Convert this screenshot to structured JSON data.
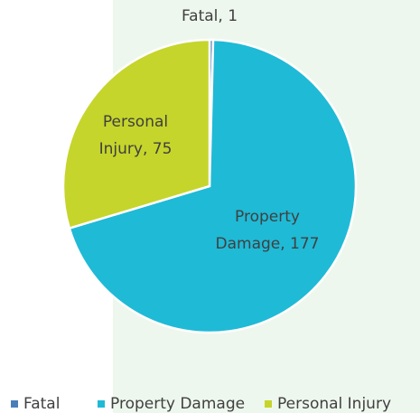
{
  "chart_data": {
    "type": "pie",
    "categories": [
      "Fatal",
      "Property Damage",
      "Personal Injury"
    ],
    "values": [
      1,
      177,
      75
    ],
    "value_labels": [
      [
        "Fatal, 1"
      ],
      [
        "Property",
        "Damage, 177"
      ],
      [
        "Personal",
        "Injury, 75"
      ]
    ],
    "colors": [
      "#4a7ebb",
      "#1fbad6",
      "#c5d52b"
    ],
    "legend": "bottom"
  }
}
